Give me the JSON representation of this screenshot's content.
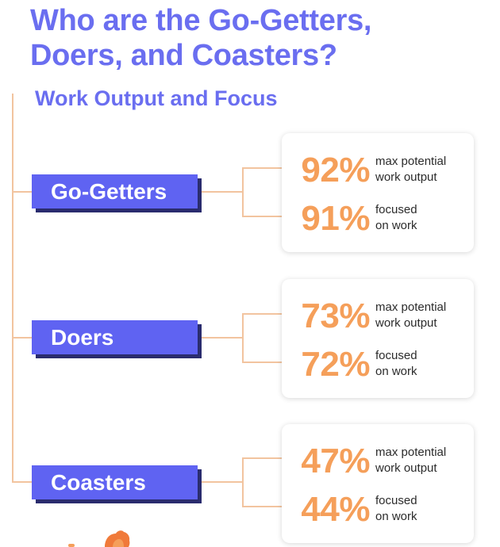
{
  "title": {
    "line1": "Who are the Go-Getters,",
    "line2": "Doers, and Coasters?"
  },
  "subtitle": "Work Output and Focus",
  "colors": {
    "accent": "#6a6ef0",
    "label_fill": "#5f63f2",
    "label_shadow": "#2a2c6e",
    "stat_orange": "#f59f5a",
    "connector": "#f2c49f",
    "text_dark": "#2b2b2b"
  },
  "groups": [
    {
      "label": "Go-Getters",
      "stats": [
        {
          "value": "92%",
          "desc1": "max potential",
          "desc2": "work output"
        },
        {
          "value": "91%",
          "desc1": "focused",
          "desc2": "on work"
        }
      ]
    },
    {
      "label": "Doers",
      "stats": [
        {
          "value": "73%",
          "desc1": "max potential",
          "desc2": "work output"
        },
        {
          "value": "72%",
          "desc1": "focused",
          "desc2": "on work"
        }
      ]
    },
    {
      "label": "Coasters",
      "stats": [
        {
          "value": "47%",
          "desc1": "max potential",
          "desc2": "work output"
        },
        {
          "value": "44%",
          "desc1": "focused",
          "desc2": "on work"
        }
      ]
    }
  ],
  "footer": {
    "logo_icon": "brand-logo-icon"
  }
}
